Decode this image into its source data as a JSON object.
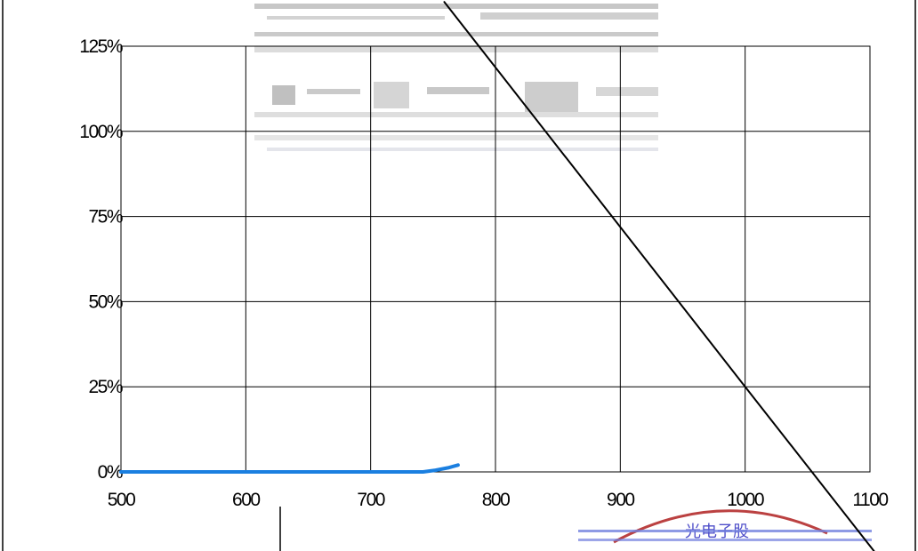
{
  "chart_data": {
    "type": "line",
    "title": "",
    "xlabel": "",
    "ylabel": "",
    "xlim": [
      500,
      1100
    ],
    "ylim": [
      0,
      125
    ],
    "x_ticks": [
      "500",
      "600",
      "700",
      "800",
      "900",
      "1000",
      "1100"
    ],
    "y_ticks": [
      "0%",
      "25%",
      "50%",
      "75%",
      "100%",
      "125%"
    ],
    "grid": true,
    "series": [
      {
        "color": "#1a7fe0",
        "x": [
          500,
          600,
          700,
          742,
          752,
          762,
          770
        ],
        "y": [
          0,
          0,
          0,
          0,
          0.5,
          1.2,
          2.0
        ]
      },
      {
        "color": "#000000",
        "x": [
          759,
          1000,
          1107
        ],
        "y": [
          138,
          25,
          -25
        ]
      }
    ]
  },
  "watermark": {
    "description": "garbled overprinted header text and partial red seal",
    "seal_text": "光电子股"
  }
}
